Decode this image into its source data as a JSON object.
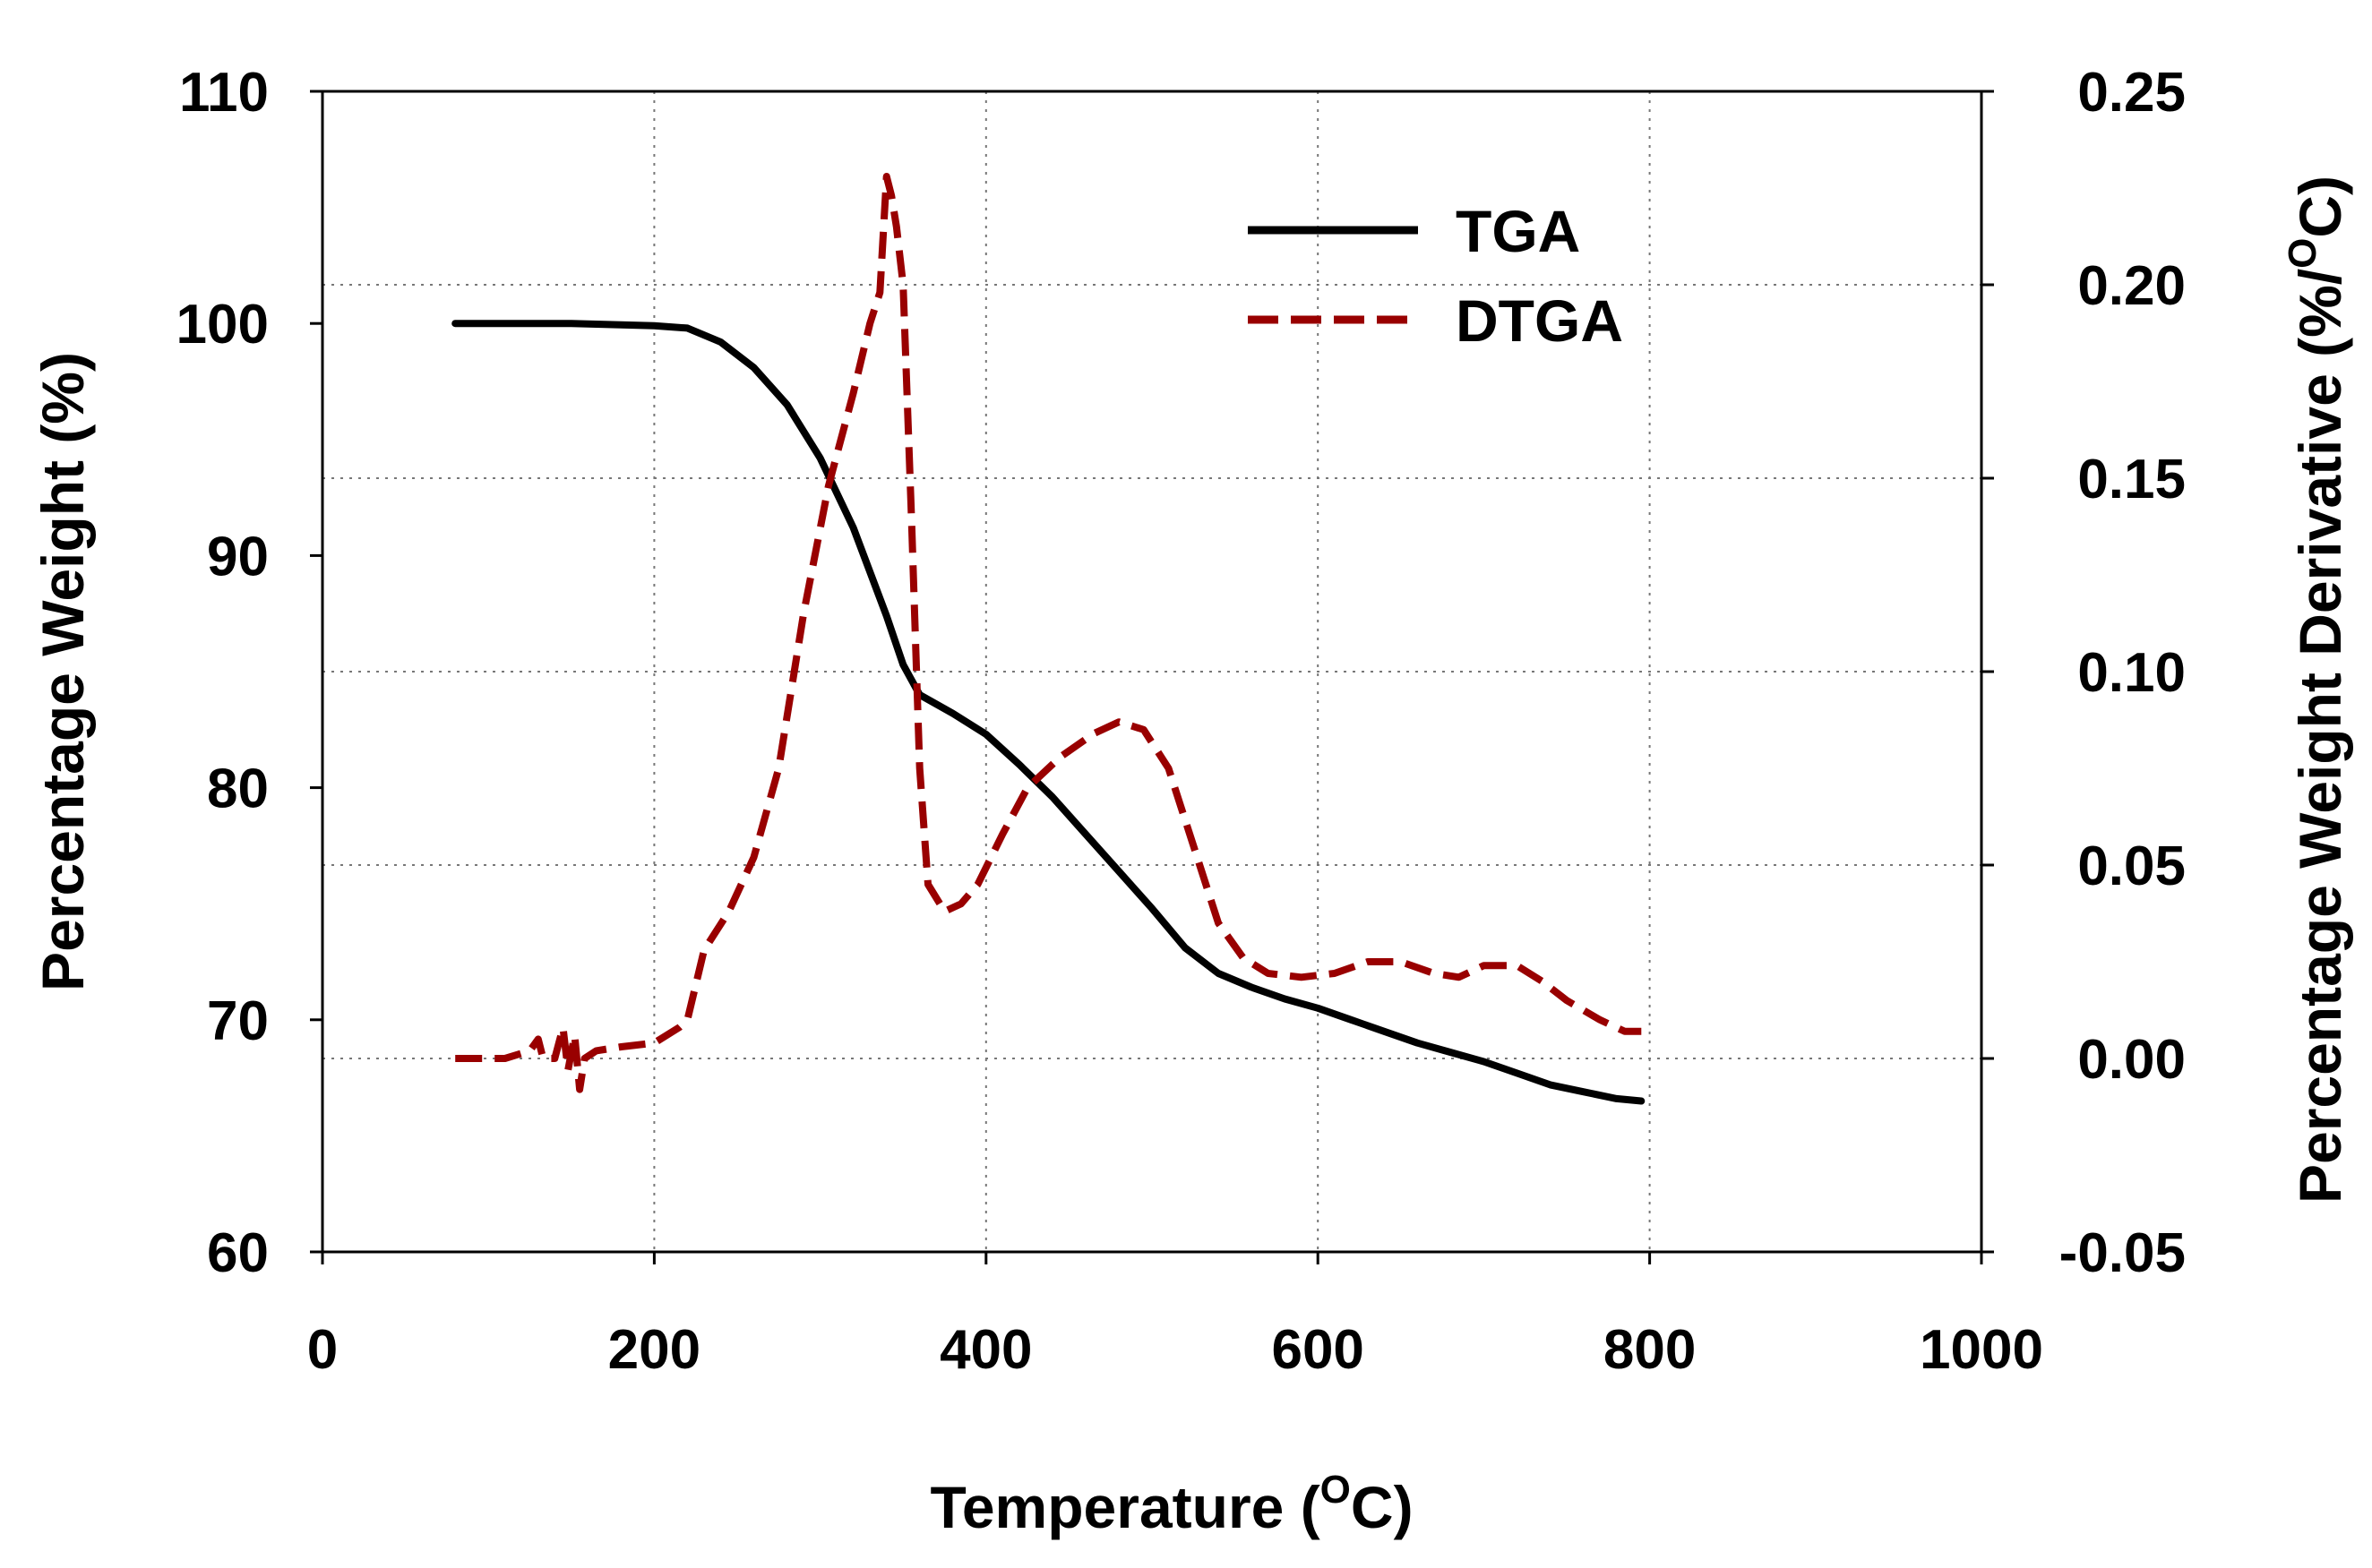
{
  "chart_data": {
    "type": "line",
    "x_axis": {
      "label": "Temperature",
      "unit_prefix": "(",
      "unit_sup": "O",
      "unit_suffix": "C)",
      "range": [
        0,
        1000
      ],
      "ticks": [
        0,
        200,
        400,
        600,
        800,
        1000
      ],
      "tick_labels": [
        "0",
        "200",
        "400",
        "600",
        "800",
        "1000"
      ]
    },
    "y_axis_left": {
      "label": "Percentage Weight (%)",
      "range": [
        60,
        110
      ],
      "ticks": [
        60,
        70,
        80,
        90,
        100,
        110
      ],
      "tick_labels": [
        "60",
        "70",
        "80",
        "90",
        "100",
        "110"
      ]
    },
    "y_axis_right": {
      "label_main": "Percentage Weight Derivative (%/",
      "label_sup": "O",
      "label_end": "C)",
      "range": [
        -0.05,
        0.25
      ],
      "ticks": [
        -0.05,
        0.0,
        0.05,
        0.1,
        0.15,
        0.2,
        0.25
      ],
      "tick_labels": [
        "-0.05",
        "0.00",
        "0.05",
        "0.10",
        "0.15",
        "0.20",
        "0.25"
      ]
    },
    "grid": {
      "vertical_at_x": [
        200,
        400,
        600,
        800
      ],
      "horizontal_at_right_y": [
        0.0,
        0.05,
        0.1,
        0.15,
        0.2
      ]
    },
    "legend": {
      "position": "top-center",
      "entries": [
        "TGA",
        "DTGA"
      ]
    },
    "series": [
      {
        "name": "TGA",
        "axis": "left",
        "style": "solid",
        "color": "#000000",
        "points": [
          [
            80,
            100
          ],
          [
            150,
            100
          ],
          [
            200,
            99.9
          ],
          [
            220,
            99.8
          ],
          [
            240,
            99.2
          ],
          [
            260,
            98.1
          ],
          [
            280,
            96.5
          ],
          [
            300,
            94.2
          ],
          [
            320,
            91.2
          ],
          [
            340,
            87.4
          ],
          [
            350,
            85.3
          ],
          [
            360,
            84.0
          ],
          [
            380,
            83.2
          ],
          [
            400,
            82.3
          ],
          [
            420,
            81.0
          ],
          [
            440,
            79.6
          ],
          [
            460,
            78.0
          ],
          [
            480,
            76.4
          ],
          [
            500,
            74.8
          ],
          [
            520,
            73.1
          ],
          [
            540,
            72.0
          ],
          [
            560,
            71.4
          ],
          [
            580,
            70.9
          ],
          [
            600,
            70.5
          ],
          [
            620,
            70.0
          ],
          [
            640,
            69.5
          ],
          [
            660,
            69.0
          ],
          [
            680,
            68.6
          ],
          [
            700,
            68.2
          ],
          [
            720,
            67.7
          ],
          [
            740,
            67.2
          ],
          [
            760,
            66.9
          ],
          [
            780,
            66.6
          ],
          [
            795,
            66.5
          ]
        ]
      },
      {
        "name": "DTGA",
        "axis": "right",
        "style": "dashed",
        "color": "#990000",
        "points": [
          [
            80,
            0.0
          ],
          [
            110,
            0.0
          ],
          [
            125,
            0.002
          ],
          [
            130,
            0.005
          ],
          [
            133,
            0.0
          ],
          [
            140,
            0.0
          ],
          [
            145,
            0.008
          ],
          [
            148,
            -0.003
          ],
          [
            152,
            0.006
          ],
          [
            155,
            -0.008
          ],
          [
            158,
            0.0
          ],
          [
            165,
            0.002
          ],
          [
            180,
            0.003
          ],
          [
            200,
            0.004
          ],
          [
            215,
            0.008
          ],
          [
            220,
            0.01
          ],
          [
            230,
            0.028
          ],
          [
            245,
            0.038
          ],
          [
            260,
            0.052
          ],
          [
            275,
            0.075
          ],
          [
            290,
            0.115
          ],
          [
            305,
            0.148
          ],
          [
            320,
            0.172
          ],
          [
            330,
            0.19
          ],
          [
            336,
            0.198
          ],
          [
            340,
            0.228
          ],
          [
            343,
            0.223
          ],
          [
            346,
            0.215
          ],
          [
            350,
            0.2
          ],
          [
            355,
            0.14
          ],
          [
            360,
            0.075
          ],
          [
            365,
            0.045
          ],
          [
            375,
            0.038
          ],
          [
            385,
            0.04
          ],
          [
            395,
            0.045
          ],
          [
            410,
            0.058
          ],
          [
            425,
            0.07
          ],
          [
            445,
            0.078
          ],
          [
            465,
            0.084
          ],
          [
            480,
            0.087
          ],
          [
            495,
            0.085
          ],
          [
            510,
            0.075
          ],
          [
            525,
            0.055
          ],
          [
            540,
            0.035
          ],
          [
            555,
            0.026
          ],
          [
            570,
            0.022
          ],
          [
            590,
            0.021
          ],
          [
            610,
            0.022
          ],
          [
            630,
            0.025
          ],
          [
            650,
            0.025
          ],
          [
            670,
            0.022
          ],
          [
            685,
            0.021
          ],
          [
            700,
            0.024
          ],
          [
            720,
            0.024
          ],
          [
            735,
            0.02
          ],
          [
            750,
            0.015
          ],
          [
            770,
            0.01
          ],
          [
            785,
            0.007
          ],
          [
            795,
            0.007
          ]
        ]
      }
    ]
  }
}
